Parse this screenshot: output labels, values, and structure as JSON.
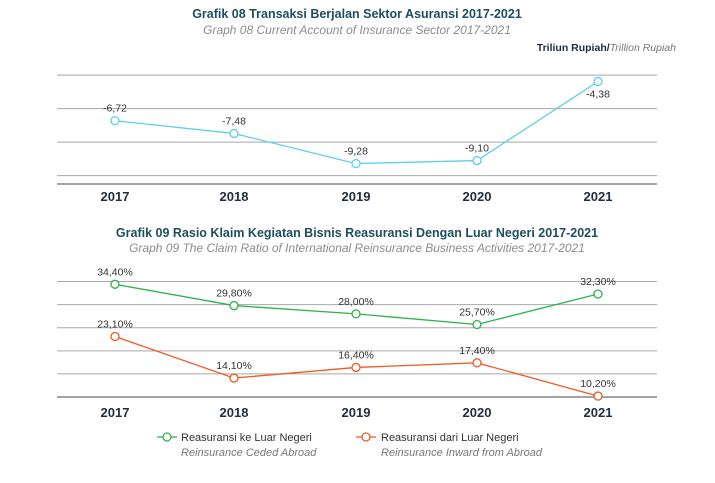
{
  "chart_data": [
    {
      "type": "line",
      "title": "Grafik 08 Transaksi Berjalan Sektor Asuransi 2017-2021",
      "subtitle": "Graph 08 Current Account of Insurance Sector 2017-2021",
      "unit_main": "Triliun Rupiah/",
      "unit_sub": "Trillion Rupiah",
      "categories": [
        "2017",
        "2018",
        "2019",
        "2020",
        "2021"
      ],
      "series": [
        {
          "values": [
            -6.72,
            -7.48,
            -9.28,
            -9.1,
            -4.38
          ],
          "labels": [
            "-6,72",
            "-7,48",
            "-9,28",
            "-9,10",
            "-4,38"
          ],
          "color": "#5fd0e8"
        }
      ],
      "ylim": [
        -10.5,
        -3.75
      ],
      "grid": true,
      "legend": "none"
    },
    {
      "type": "line",
      "title": "Grafik 09 Rasio Klaim Kegiatan Bisnis Reasuransi Dengan Luar Negeri 2017-2021",
      "subtitle": "Graph 09 The Claim Ratio of International Reinsurance Business Activities 2017-2021",
      "categories": [
        "2017",
        "2018",
        "2019",
        "2020",
        "2021"
      ],
      "series": [
        {
          "name": "Reasuransi ke Luar Negeri",
          "name_en": "Reinsurance Ceded Abroad",
          "values": [
            34.4,
            29.8,
            28.0,
            25.7,
            32.3
          ],
          "labels": [
            "34,40%",
            "29,80%",
            "28,00%",
            "25,70%",
            "32,30%"
          ],
          "color": "#2eb24a"
        },
        {
          "name": "Reasuransi dari Luar Negeri",
          "name_en": "Reinsurance Inward from Abroad",
          "values": [
            23.1,
            14.1,
            16.4,
            17.4,
            10.2
          ],
          "labels": [
            "23,10%",
            "14,10%",
            "16,40%",
            "17,40%",
            "10,20%"
          ],
          "color": "#ef5a28"
        }
      ],
      "ylim": [
        10,
        37.5
      ],
      "grid": true,
      "legend": "bottom"
    }
  ]
}
